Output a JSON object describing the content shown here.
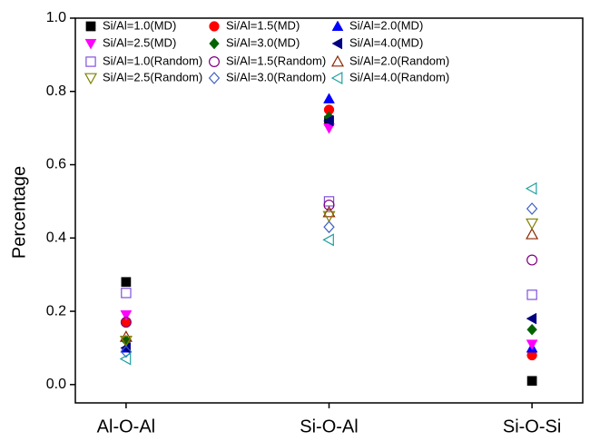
{
  "chart_data": {
    "type": "scatter",
    "y_label": "Percentage",
    "categories": [
      "Al-O-Al",
      "Si-O-Al",
      "Si-O-Si"
    ],
    "ylim": [
      -0.05,
      1.0
    ],
    "yticks": [
      {
        "value": 0,
        "label": "0.0"
      },
      0.2,
      0.4,
      0.6,
      0.8,
      {
        "value": 1,
        "label": "1.0"
      }
    ],
    "legend": "top-left",
    "series": [
      {
        "name": "Si/Al=1.0(MD)",
        "color": "#000000",
        "marker": "square",
        "filled": true,
        "values": [
          0.28,
          0.72,
          0.01
        ]
      },
      {
        "name": "Si/Al=1.5(MD)",
        "color": "#ff0000",
        "marker": "circle",
        "filled": true,
        "values": [
          0.17,
          0.75,
          0.08
        ]
      },
      {
        "name": "Si/Al=2.0(MD)",
        "color": "#0000ff",
        "marker": "triangle-up",
        "filled": true,
        "values": [
          0.1,
          0.78,
          0.1
        ]
      },
      {
        "name": "Si/Al=2.5(MD)",
        "color": "#ff00ff",
        "marker": "triangle-down",
        "filled": true,
        "values": [
          0.19,
          0.7,
          0.11
        ]
      },
      {
        "name": "Si/Al=3.0(MD)",
        "color": "#006400",
        "marker": "diamond",
        "filled": true,
        "values": [
          0.12,
          0.73,
          0.15
        ]
      },
      {
        "name": "Si/Al=4.0(MD)",
        "color": "#000080",
        "marker": "triangle-left",
        "filled": true,
        "values": [
          0.1,
          0.72,
          0.18
        ]
      },
      {
        "name": "Si/Al=1.0(Random)",
        "color": "#8050e0",
        "marker": "square",
        "filled": false,
        "values": [
          0.25,
          0.5,
          0.245
        ]
      },
      {
        "name": "Si/Al=1.5(Random)",
        "color": "#800080",
        "marker": "circle",
        "filled": false,
        "values": [
          0.17,
          0.49,
          0.34
        ]
      },
      {
        "name": "Si/Al=2.0(Random)",
        "color": "#8b2500",
        "marker": "triangle-up",
        "filled": false,
        "values": [
          0.13,
          0.47,
          0.41
        ]
      },
      {
        "name": "Si/Al=2.5(Random)",
        "color": "#808000",
        "marker": "triangle-down",
        "filled": false,
        "values": [
          0.12,
          0.46,
          0.44
        ]
      },
      {
        "name": "Si/Al=3.0(Random)",
        "color": "#4060c0",
        "marker": "diamond",
        "filled": false,
        "values": [
          0.09,
          0.43,
          0.48
        ]
      },
      {
        "name": "Si/Al=4.0(Random)",
        "color": "#20a0a0",
        "marker": "triangle-left",
        "filled": false,
        "values": [
          0.07,
          0.395,
          0.535
        ]
      }
    ]
  }
}
